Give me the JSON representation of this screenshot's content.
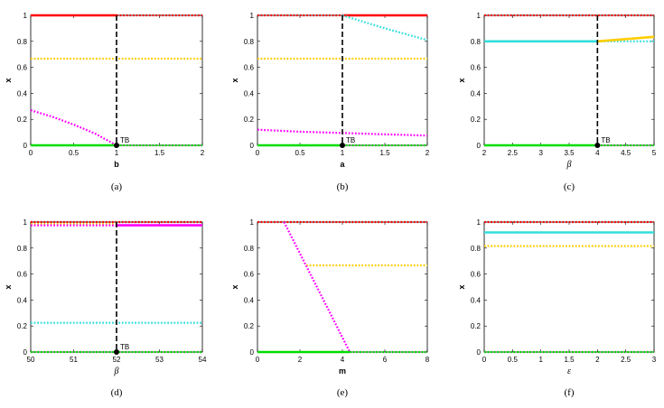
{
  "colors": {
    "red": "#ff0000",
    "magenta": "#ff00ff",
    "yellow": "#ffcc00",
    "cyan": "#33dddd",
    "green": "#00dd00",
    "black": "#000000"
  },
  "chart_data": [
    {
      "type": "line",
      "caption": "(a)",
      "xlabel": "b",
      "xlabel_italic": false,
      "ylabel": "x",
      "xlim": [
        0,
        2
      ],
      "ylim": [
        0,
        1
      ],
      "xticks": [
        0,
        0.5,
        1,
        1.5,
        2
      ],
      "xticklabels": [
        "0",
        "0.5",
        "1",
        "1.5",
        "2"
      ],
      "yticks": [
        0,
        0.2,
        0.4,
        0.6,
        0.8,
        1
      ],
      "yticklabels": [
        "0",
        "0.2",
        "0.4",
        "0.6",
        "0.8",
        "1"
      ],
      "series": [
        {
          "color": "red",
          "style": "solid",
          "x": [
            0,
            1
          ],
          "y": [
            1,
            1
          ]
        },
        {
          "color": "red",
          "style": "dotted",
          "x": [
            1,
            2
          ],
          "y": [
            1,
            1
          ]
        },
        {
          "color": "yellow",
          "style": "dotted",
          "x": [
            0,
            2
          ],
          "y": [
            0.667,
            0.667
          ]
        },
        {
          "color": "magenta",
          "style": "dotted",
          "x": [
            0,
            0.25,
            0.5,
            0.75,
            1
          ],
          "y": [
            0.27,
            0.22,
            0.16,
            0.09,
            0
          ]
        },
        {
          "color": "green",
          "style": "solid",
          "x": [
            0,
            1
          ],
          "y": [
            0,
            0
          ]
        },
        {
          "color": "green",
          "style": "dotted",
          "x": [
            1,
            2
          ],
          "y": [
            0,
            0
          ]
        }
      ],
      "vline": 1,
      "annotation": {
        "text": "TB",
        "x": 1,
        "y": 0
      }
    },
    {
      "type": "line",
      "caption": "(b)",
      "xlabel": "a",
      "xlabel_italic": false,
      "ylabel": "x",
      "xlim": [
        0,
        2
      ],
      "ylim": [
        0,
        1
      ],
      "xticks": [
        0,
        0.5,
        1,
        1.5,
        2
      ],
      "xticklabels": [
        "0",
        "0.5",
        "1",
        "1.5",
        "2"
      ],
      "yticks": [
        0,
        0.2,
        0.4,
        0.6,
        0.8,
        1
      ],
      "yticklabels": [
        "0",
        "0.2",
        "0.4",
        "0.6",
        "0.8",
        "1"
      ],
      "series": [
        {
          "color": "red",
          "style": "dotted",
          "x": [
            0,
            1
          ],
          "y": [
            1,
            1
          ]
        },
        {
          "color": "red",
          "style": "solid",
          "x": [
            1,
            2
          ],
          "y": [
            1,
            1
          ]
        },
        {
          "color": "cyan",
          "style": "dotted",
          "x": [
            1,
            1.5,
            2
          ],
          "y": [
            1,
            0.9,
            0.81
          ]
        },
        {
          "color": "yellow",
          "style": "dotted",
          "x": [
            0,
            2
          ],
          "y": [
            0.667,
            0.667
          ]
        },
        {
          "color": "magenta",
          "style": "dotted",
          "x": [
            0,
            0.5,
            1,
            1.5,
            2
          ],
          "y": [
            0.12,
            0.105,
            0.095,
            0.085,
            0.075
          ]
        },
        {
          "color": "green",
          "style": "solid",
          "x": [
            0,
            1
          ],
          "y": [
            0,
            0
          ]
        },
        {
          "color": "green",
          "style": "dotted",
          "x": [
            1,
            2
          ],
          "y": [
            0,
            0
          ]
        }
      ],
      "vline": 1,
      "annotation": {
        "text": "TB",
        "x": 1,
        "y": 0
      }
    },
    {
      "type": "line",
      "caption": "(c)",
      "xlabel": "β",
      "xlabel_italic": true,
      "ylabel": "x",
      "xlim": [
        2,
        5
      ],
      "ylim": [
        0,
        1
      ],
      "xticks": [
        2,
        2.5,
        3,
        3.5,
        4,
        4.5,
        5
      ],
      "xticklabels": [
        "2",
        "2.5",
        "3",
        "3.5",
        "4",
        "4.5",
        "5"
      ],
      "yticks": [
        0,
        0.2,
        0.4,
        0.6,
        0.8,
        1
      ],
      "yticklabels": [
        "0",
        "0.2",
        "0.4",
        "0.6",
        "0.8",
        "1"
      ],
      "series": [
        {
          "color": "red",
          "style": "dotted",
          "x": [
            2,
            5
          ],
          "y": [
            1,
            1
          ]
        },
        {
          "color": "cyan",
          "style": "solid",
          "x": [
            2,
            4
          ],
          "y": [
            0.8,
            0.8
          ]
        },
        {
          "color": "cyan",
          "style": "dotted",
          "x": [
            4,
            5
          ],
          "y": [
            0.8,
            0.8
          ]
        },
        {
          "color": "yellow",
          "style": "solid",
          "x": [
            4,
            5
          ],
          "y": [
            0.8,
            0.835
          ]
        },
        {
          "color": "green",
          "style": "solid",
          "x": [
            2,
            4
          ],
          "y": [
            0,
            0
          ]
        },
        {
          "color": "green",
          "style": "dotted",
          "x": [
            4,
            5
          ],
          "y": [
            0,
            0
          ]
        }
      ],
      "vline": 4,
      "annotation": {
        "text": "TB",
        "x": 4,
        "y": 0
      }
    },
    {
      "type": "line",
      "caption": "(d)",
      "xlabel": "β",
      "xlabel_italic": true,
      "ylabel": "x",
      "xlim": [
        50,
        54
      ],
      "ylim": [
        0,
        1
      ],
      "xticks": [
        50,
        51,
        52,
        53,
        54
      ],
      "xticklabels": [
        "50",
        "51",
        "52",
        "53",
        "54"
      ],
      "yticks": [
        0,
        0.2,
        0.4,
        0.6,
        0.8,
        1
      ],
      "yticklabels": [
        "0",
        "0.2",
        "0.4",
        "0.6",
        "0.8",
        "1"
      ],
      "series": [
        {
          "color": "red",
          "style": "dotted",
          "x": [
            50,
            54
          ],
          "y": [
            1,
            1
          ]
        },
        {
          "color": "yellow",
          "style": "dotted",
          "x": [
            50,
            52
          ],
          "y": [
            0.985,
            0.985
          ]
        },
        {
          "color": "magenta",
          "style": "dotted",
          "x": [
            50,
            52
          ],
          "y": [
            0.975,
            0.975
          ]
        },
        {
          "color": "magenta",
          "style": "solid",
          "x": [
            52,
            54
          ],
          "y": [
            0.975,
            0.975
          ]
        },
        {
          "color": "cyan",
          "style": "dotted",
          "x": [
            50,
            54
          ],
          "y": [
            0.225,
            0.225
          ]
        },
        {
          "color": "green",
          "style": "dotted",
          "x": [
            50,
            54
          ],
          "y": [
            0,
            0
          ]
        }
      ],
      "vline": 52,
      "annotation": {
        "text": "TB",
        "x": 52,
        "y": 0
      }
    },
    {
      "type": "line",
      "caption": "(e)",
      "xlabel": "m",
      "xlabel_italic": false,
      "ylabel": "x",
      "xlim": [
        0,
        8
      ],
      "ylim": [
        0,
        1
      ],
      "xticks": [
        0,
        2,
        4,
        6,
        8
      ],
      "xticklabels": [
        "0",
        "2",
        "4",
        "6",
        "8"
      ],
      "yticks": [
        0,
        0.2,
        0.4,
        0.6,
        0.8,
        1
      ],
      "yticklabels": [
        "0",
        "0.2",
        "0.4",
        "0.6",
        "0.8",
        "1"
      ],
      "series": [
        {
          "color": "red",
          "style": "dotted",
          "x": [
            0,
            8
          ],
          "y": [
            1,
            1
          ]
        },
        {
          "color": "yellow",
          "style": "dotted",
          "x": [
            2.3,
            8
          ],
          "y": [
            0.667,
            0.667
          ]
        },
        {
          "color": "magenta",
          "style": "dotted",
          "x": [
            1.25,
            4.35
          ],
          "y": [
            1,
            0
          ]
        },
        {
          "color": "green",
          "style": "solid",
          "x": [
            0,
            4.35
          ],
          "y": [
            0,
            0
          ]
        },
        {
          "color": "green",
          "style": "dotted",
          "x": [
            4.35,
            8
          ],
          "y": [
            0,
            0
          ]
        }
      ],
      "vline": null,
      "annotation": null
    },
    {
      "type": "line",
      "caption": "(f)",
      "xlabel": "ε",
      "xlabel_italic": true,
      "ylabel": "x",
      "xlim": [
        0,
        3
      ],
      "ylim": [
        0,
        1
      ],
      "xticks": [
        0,
        0.5,
        1,
        1.5,
        2,
        2.5,
        3
      ],
      "xticklabels": [
        "0",
        "0.5",
        "1",
        "1.5",
        "2",
        "2.5",
        "3"
      ],
      "yticks": [
        0,
        0.2,
        0.4,
        0.6,
        0.8,
        1
      ],
      "yticklabels": [
        "0",
        "0.2",
        "0.4",
        "0.6",
        "0.8",
        "1"
      ],
      "series": [
        {
          "color": "red",
          "style": "dotted",
          "x": [
            0,
            3
          ],
          "y": [
            1,
            1
          ]
        },
        {
          "color": "cyan",
          "style": "solid",
          "x": [
            0,
            3
          ],
          "y": [
            0.92,
            0.92
          ]
        },
        {
          "color": "yellow",
          "style": "dotted",
          "x": [
            0,
            3
          ],
          "y": [
            0.815,
            0.815
          ]
        },
        {
          "color": "green",
          "style": "dotted",
          "x": [
            0,
            3
          ],
          "y": [
            0,
            0
          ]
        }
      ],
      "vline": null,
      "annotation": null
    }
  ]
}
